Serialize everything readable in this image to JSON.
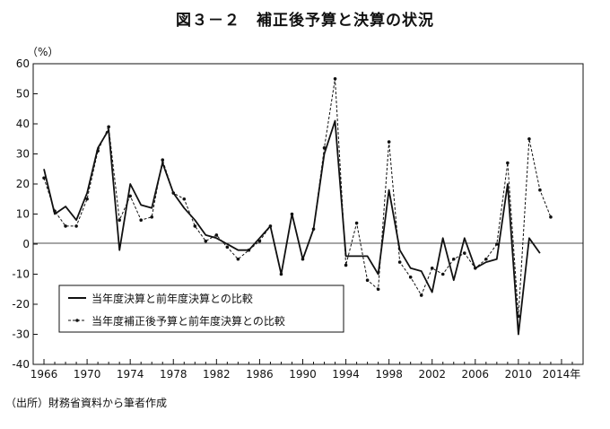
{
  "title": "図３－２　補正後予算と決算の状況",
  "source": "（出所）財務省資料から筆者作成",
  "chart_data": {
    "type": "line",
    "title": "図３－２　補正後予算と決算の状況",
    "ylabel": "（%）",
    "xlabel": "",
    "ylim": [
      -40,
      60
    ],
    "xlim": [
      1965,
      2016
    ],
    "grid": false,
    "legend_position": "bottom-left",
    "y_ticks": [
      60,
      50,
      40,
      30,
      20,
      10,
      0,
      -10,
      -20,
      -30,
      -40
    ],
    "x_tick_labels": [
      "1966",
      "1970",
      "1974",
      "1978",
      "1982",
      "1986",
      "1990",
      "1994",
      "1998",
      "2002",
      "2006",
      "2010",
      "2014年"
    ],
    "x_tick_values": [
      1966,
      1970,
      1974,
      1978,
      1982,
      1986,
      1990,
      1994,
      1998,
      2002,
      2006,
      2010,
      2014
    ],
    "series": [
      {
        "name": "当年度決算と前年度決算との比較",
        "style": "solid",
        "color": "#111111",
        "x": [
          1966,
          1967,
          1968,
          1969,
          1970,
          1971,
          1972,
          1973,
          1974,
          1975,
          1976,
          1977,
          1978,
          1979,
          1980,
          1981,
          1982,
          1983,
          1984,
          1985,
          1986,
          1987,
          1988,
          1989,
          1990,
          1991,
          1992,
          1993,
          1994,
          1995,
          1996,
          1997,
          1998,
          1999,
          2000,
          2001,
          2002,
          2003,
          2004,
          2005,
          2006,
          2007,
          2008,
          2009,
          2010,
          2011,
          2012,
          2013,
          2014
        ],
        "values": [
          25,
          10,
          12.5,
          8,
          17,
          32,
          38,
          -2,
          20,
          13,
          12,
          27,
          17,
          12,
          8,
          3,
          2,
          0,
          -2,
          -2,
          2,
          6,
          -10,
          10,
          -5,
          5,
          30,
          41,
          -4,
          -4,
          -4,
          -10,
          18,
          -2,
          -8,
          -9,
          -16,
          2,
          -12,
          2,
          -8,
          -6,
          -5,
          20,
          -30,
          2,
          -3,
          null,
          null
        ]
      },
      {
        "name": "当年度補正後予算と前年度決算との比較",
        "style": "dashed-dots",
        "color": "#111111",
        "x": [
          1966,
          1967,
          1968,
          1969,
          1970,
          1971,
          1972,
          1973,
          1974,
          1975,
          1976,
          1977,
          1978,
          1979,
          1980,
          1981,
          1982,
          1983,
          1984,
          1985,
          1986,
          1987,
          1988,
          1989,
          1990,
          1991,
          1992,
          1993,
          1994,
          1995,
          1996,
          1997,
          1998,
          1999,
          2000,
          2001,
          2002,
          2003,
          2004,
          2005,
          2006,
          2007,
          2008,
          2009,
          2010,
          2011,
          2012,
          2013,
          2014
        ],
        "values": [
          22,
          11,
          6,
          6,
          15,
          31,
          39,
          8,
          16,
          8,
          9,
          28,
          17,
          15,
          6,
          1,
          3,
          -1,
          -5,
          -2,
          1,
          6,
          -10,
          10,
          -5,
          5,
          32,
          55,
          -7,
          7,
          -12,
          -15,
          34,
          -6,
          -11,
          -17,
          -8,
          -10,
          -5,
          -3,
          -8,
          -5,
          0,
          27,
          -24,
          35,
          18,
          9,
          null
        ]
      }
    ]
  }
}
